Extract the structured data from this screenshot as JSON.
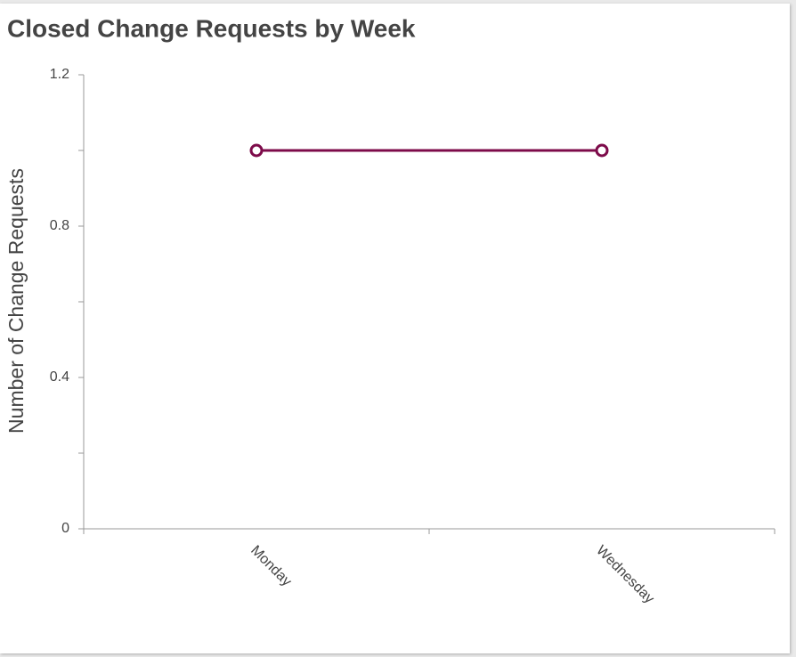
{
  "chart_data": {
    "type": "line",
    "title": "Closed Change Requests by Week",
    "y_label": "Number of Change Requests",
    "categories": [
      "Monday",
      "Wednesday"
    ],
    "series": [
      {
        "name": "Closed Change Requests",
        "color": "#7d0b4a",
        "values": [
          1,
          1
        ]
      }
    ],
    "ylim": [
      0,
      1.2
    ],
    "yticks": [
      0,
      0.4,
      0.8,
      1.2
    ],
    "y_minor_ticks": [
      0.2,
      0.6,
      1.0
    ]
  }
}
